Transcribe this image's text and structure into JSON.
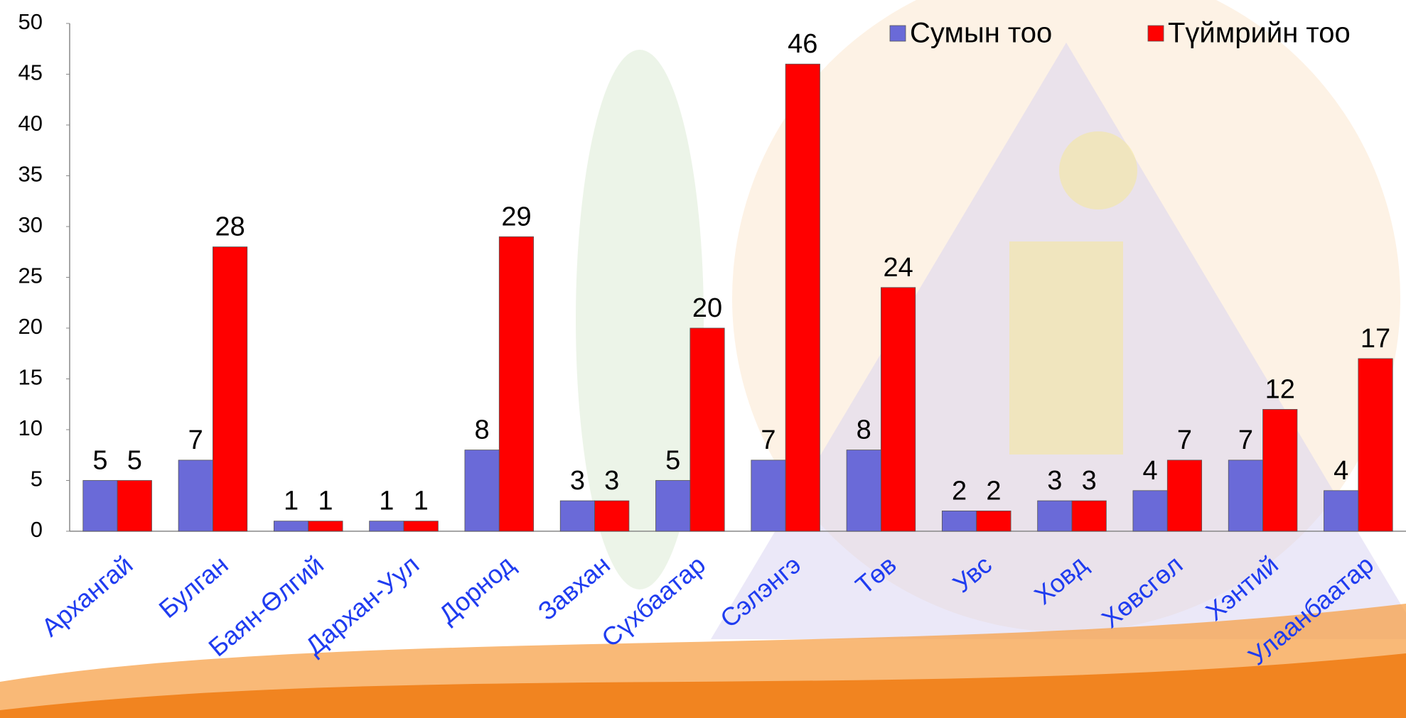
{
  "chart_data": {
    "type": "bar",
    "categories": [
      "Архангай",
      "Булган",
      "Баян-Өлгий",
      "Дархан-Уул",
      "Дорнод",
      "Завхан",
      "Сүхбаатар",
      "Сэлэнгэ",
      "Төв",
      "Увс",
      "Ховд",
      "Хөвсгөл",
      "Хэнтий",
      "Улаанбаатар"
    ],
    "series": [
      {
        "name": "Сумын тоо",
        "color": "#6a6ad8",
        "values": [
          5,
          7,
          1,
          1,
          8,
          3,
          5,
          7,
          8,
          2,
          3,
          4,
          7,
          4
        ]
      },
      {
        "name": "Түймрийн тоо",
        "color": "#ff0000",
        "values": [
          5,
          28,
          1,
          1,
          29,
          3,
          20,
          46,
          24,
          2,
          3,
          7,
          12,
          17
        ]
      }
    ],
    "ylim": [
      0,
      50
    ],
    "yticks": [
      0,
      5,
      10,
      15,
      20,
      25,
      30,
      35,
      40,
      45,
      50
    ],
    "grid": false,
    "legend": "top-right"
  }
}
